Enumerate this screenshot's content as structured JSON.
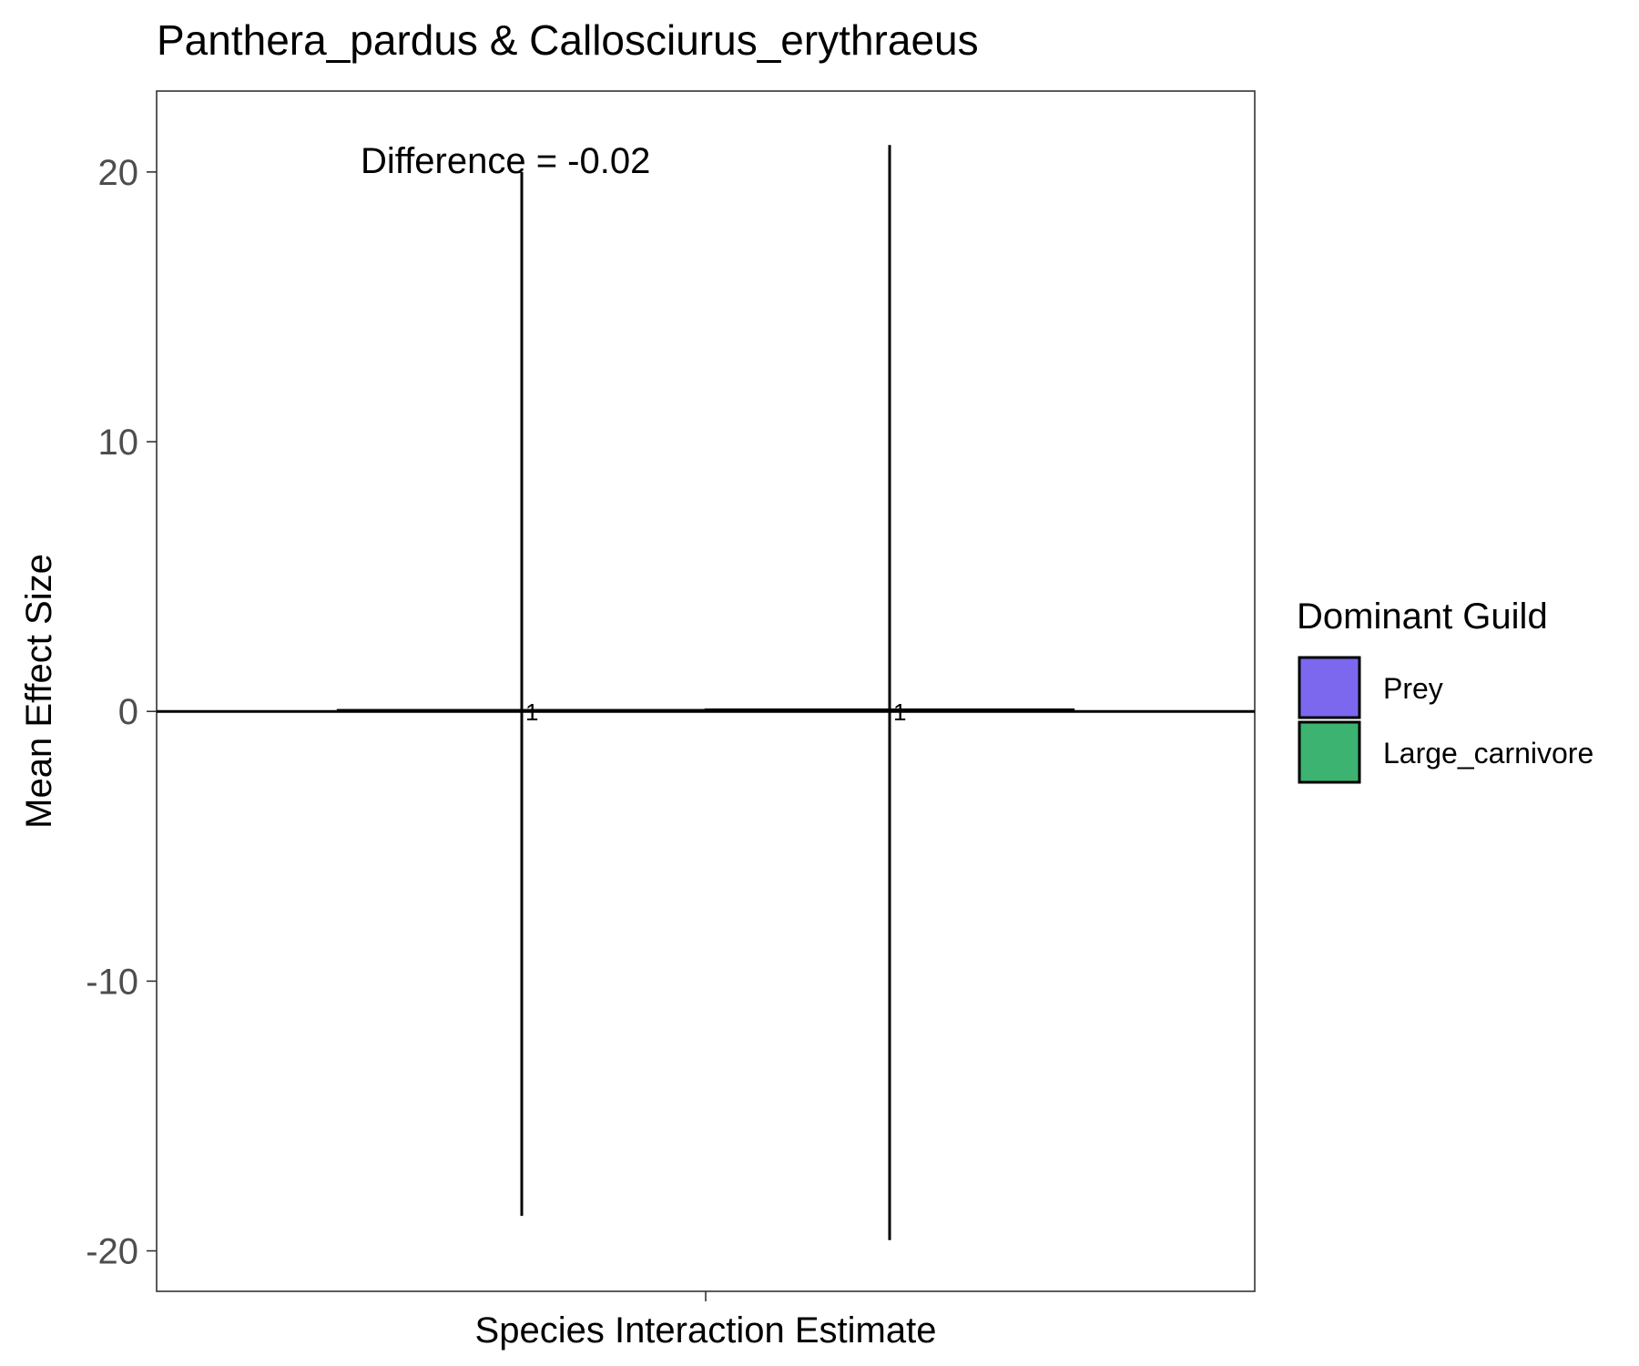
{
  "chart_data": {
    "type": "bar",
    "title": "Panthera_pardus & Callosciurus_erythraeus",
    "xlabel": "Species Interaction Estimate",
    "ylabel": "Mean Effect Size",
    "x_tick_labels": [
      ""
    ],
    "ylim": [
      -21.5,
      23
    ],
    "y_ticks": [
      -20,
      -10,
      0,
      10,
      20
    ],
    "y_tick_labels": [
      "-20",
      "-10",
      "0",
      "10",
      "20"
    ],
    "grid": false,
    "reference_line_y": 0,
    "annotation": "Difference = -0.02",
    "legend": {
      "title": "Dominant Guild",
      "placement": "right"
    },
    "series": [
      {
        "name": "Prey",
        "color": "#7b68ee",
        "value": 0.05,
        "error_low": -18.7,
        "error_high": 20.0,
        "label": "1"
      },
      {
        "name": "Large_carnivore",
        "color": "#3cb371",
        "value": 0.07,
        "error_low": -19.6,
        "error_high": 21.0,
        "label": "1"
      }
    ]
  }
}
